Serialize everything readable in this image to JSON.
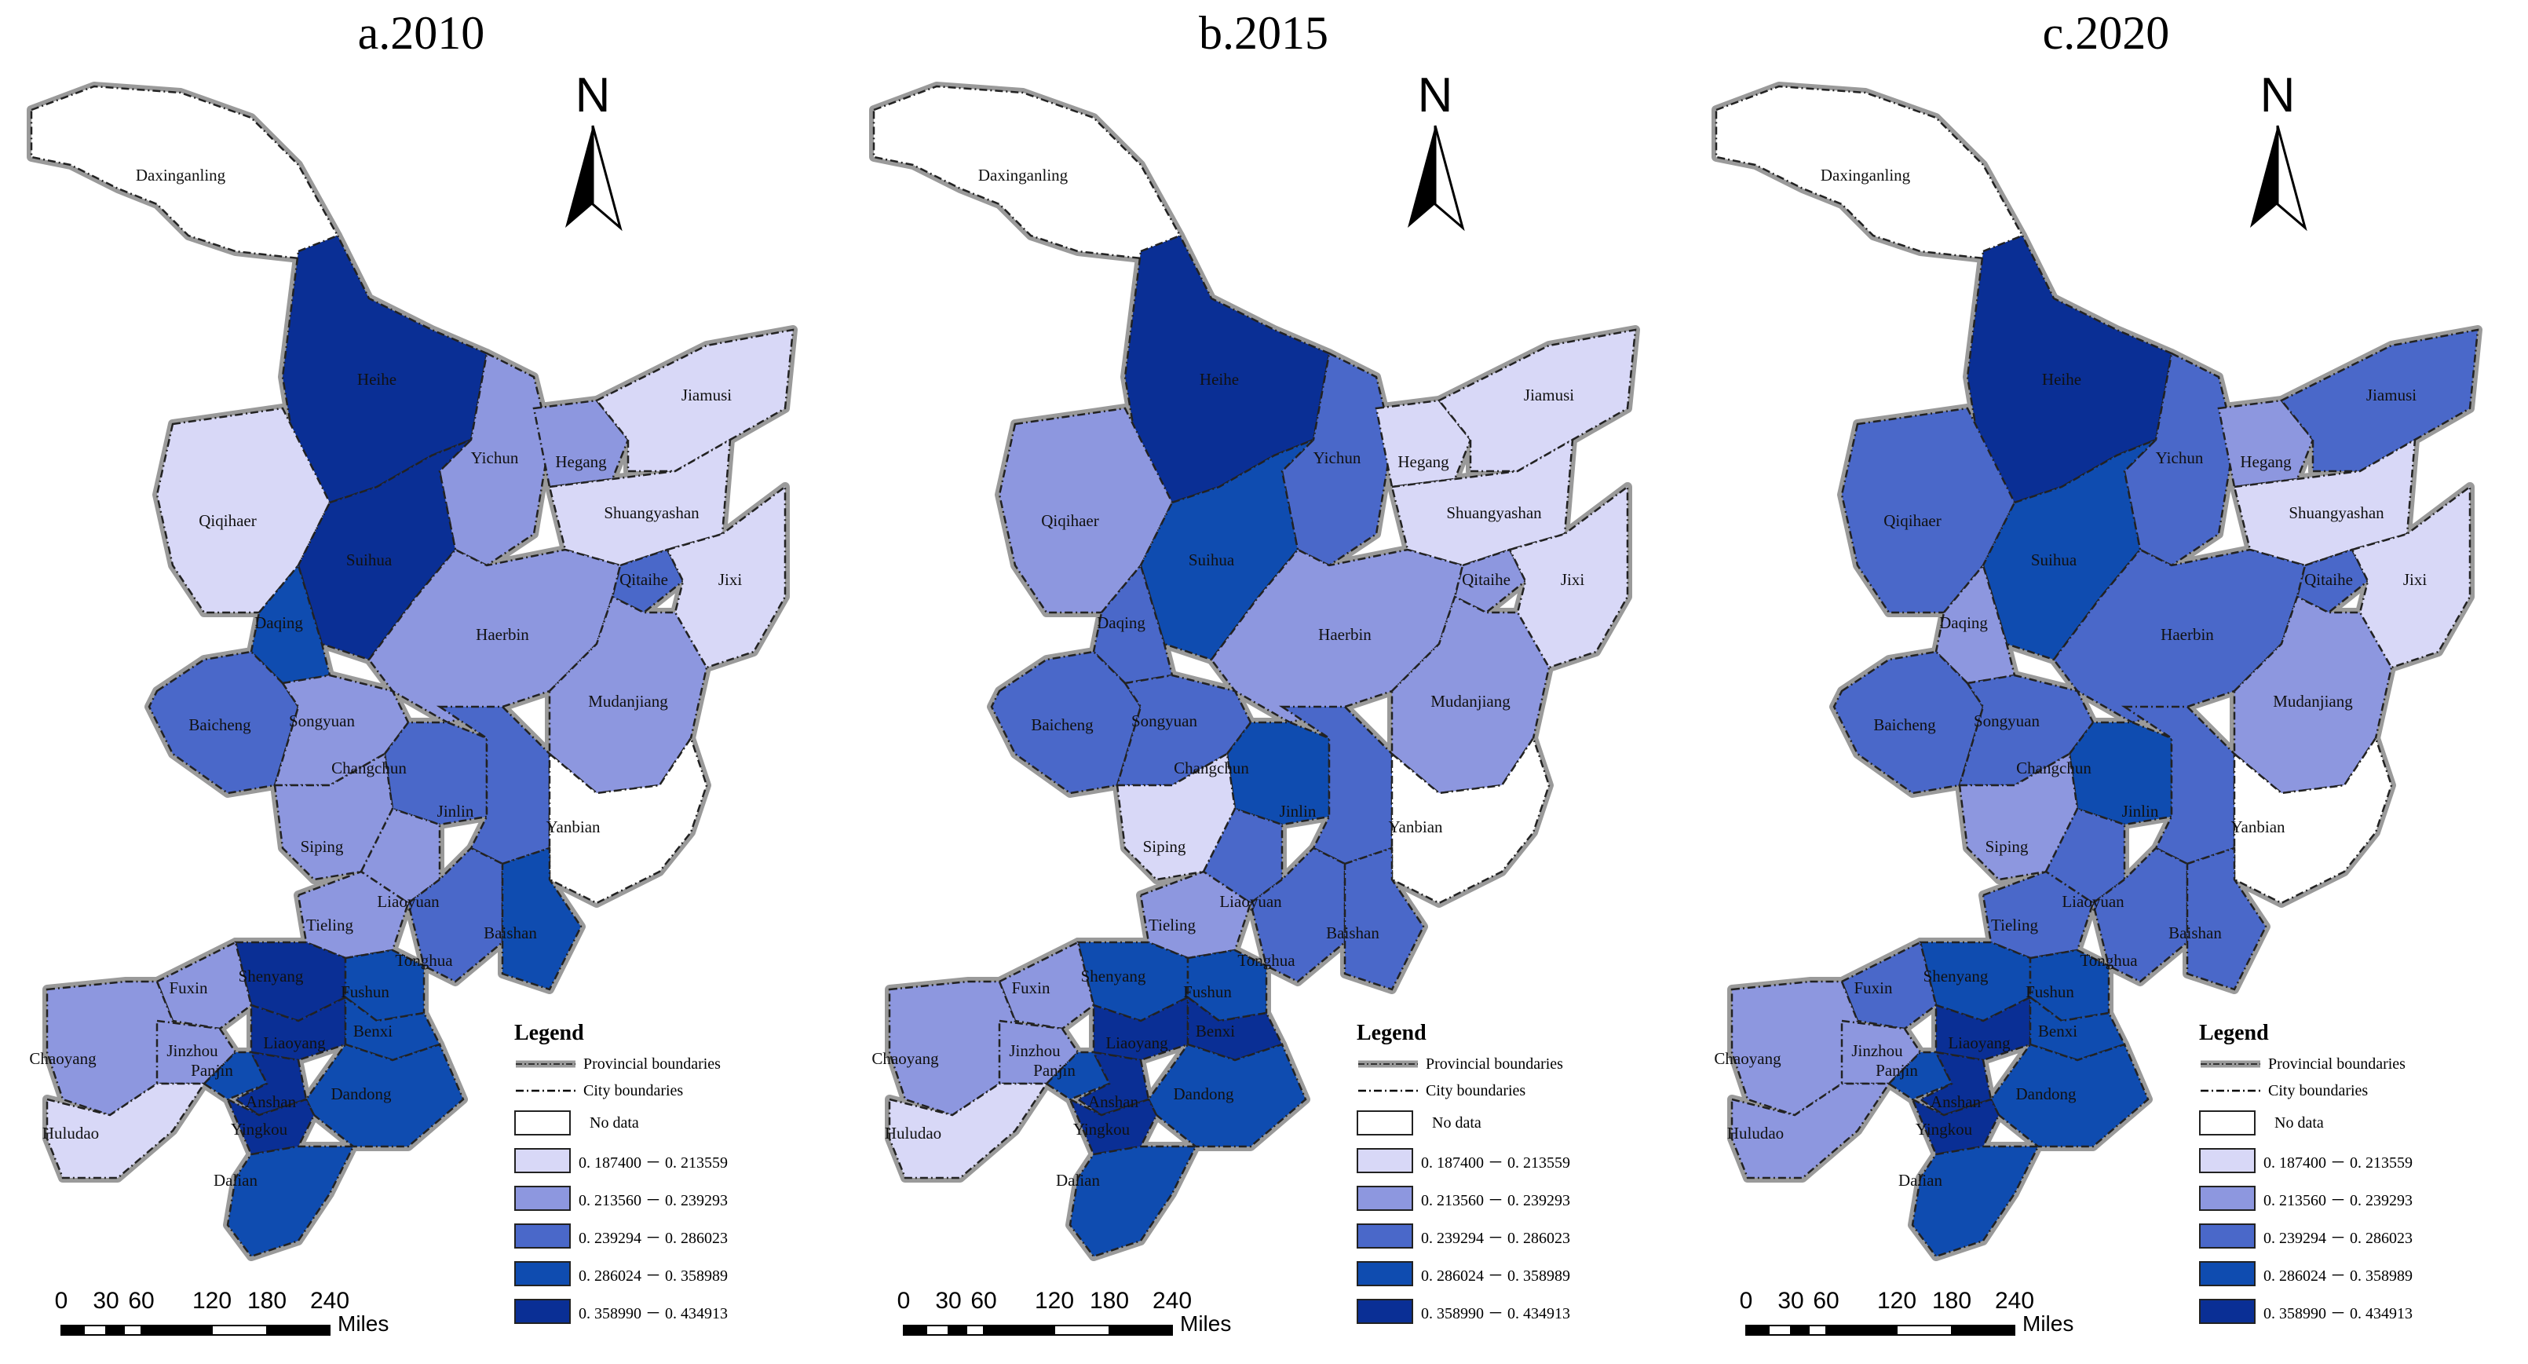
{
  "panels": [
    {
      "title": "a.2010",
      "classes": {
        "Daxinganling": 0,
        "Heihe": 5,
        "Yichun": 2,
        "Hegang": 2,
        "Jiamusi": 1,
        "Qiqihaer": 1,
        "Suihua": 5,
        "Shuangyashan": 1,
        "Daqing": 4,
        "Qitaihe": 3,
        "Jixi": 1,
        "Haerbin": 2,
        "Mudanjiang": 2,
        "Baicheng": 3,
        "Songyuan": 2,
        "Changchun": 3,
        "Jinlin": 3,
        "Yanbian": 0,
        "Siping": 2,
        "Liaoyuan": 2,
        "Tonghua": 3,
        "Baishan": 4,
        "Tieling": 2,
        "Shenyang": 5,
        "Fuxin": 2,
        "Fushun": 4,
        "Chaoyang": 2,
        "Jinzhou": 2,
        "Liaoyang": 5,
        "Benxi": 4,
        "Panjin": 4,
        "Anshan": 5,
        "Dandong": 4,
        "Huludao": 1,
        "Yingkou": 5,
        "Dalian": 4
      }
    },
    {
      "title": "b.2015",
      "classes": {
        "Daxinganling": 0,
        "Heihe": 5,
        "Yichun": 3,
        "Hegang": 1,
        "Jiamusi": 1,
        "Qiqihaer": 2,
        "Suihua": 4,
        "Shuangyashan": 1,
        "Daqing": 3,
        "Qitaihe": 2,
        "Jixi": 1,
        "Haerbin": 2,
        "Mudanjiang": 2,
        "Baicheng": 3,
        "Songyuan": 3,
        "Changchun": 4,
        "Jinlin": 3,
        "Yanbian": 0,
        "Siping": 1,
        "Liaoyuan": 3,
        "Tonghua": 3,
        "Baishan": 3,
        "Tieling": 2,
        "Shenyang": 4,
        "Fuxin": 2,
        "Fushun": 4,
        "Chaoyang": 2,
        "Jinzhou": 2,
        "Liaoyang": 5,
        "Benxi": 5,
        "Panjin": 4,
        "Anshan": 5,
        "Dandong": 4,
        "Huludao": 1,
        "Yingkou": 5,
        "Dalian": 4
      }
    },
    {
      "title": "c.2020",
      "classes": {
        "Daxinganling": 0,
        "Heihe": 5,
        "Yichun": 3,
        "Hegang": 2,
        "Jiamusi": 3,
        "Qiqihaer": 3,
        "Suihua": 4,
        "Shuangyashan": 1,
        "Daqing": 2,
        "Qitaihe": 3,
        "Jixi": 1,
        "Haerbin": 3,
        "Mudanjiang": 2,
        "Baicheng": 3,
        "Songyuan": 3,
        "Changchun": 4,
        "Jinlin": 3,
        "Yanbian": 0,
        "Siping": 2,
        "Liaoyuan": 3,
        "Tonghua": 3,
        "Baishan": 3,
        "Tieling": 3,
        "Shenyang": 4,
        "Fuxin": 3,
        "Fushun": 4,
        "Chaoyang": 2,
        "Jinzhou": 2,
        "Liaoyang": 5,
        "Benxi": 4,
        "Panjin": 4,
        "Anshan": 5,
        "Dandong": 4,
        "Huludao": 2,
        "Yingkou": 5,
        "Dalian": 4
      }
    }
  ],
  "north_label": "N",
  "legend": {
    "title": "Legend",
    "provincial": "Provincial boundaries",
    "city": "City boundaries",
    "no_data": "No data",
    "ranges": [
      "0. 187400 － 0. 213559",
      "0. 213560 － 0. 239293",
      "0. 239294 － 0. 286023",
      "0. 286024 － 0. 358989",
      "0. 358990 － 0. 434913"
    ]
  },
  "class_colors": [
    "#ffffff",
    "#d8d8f7",
    "#8d97df",
    "#4a68c9",
    "#0f4cb0",
    "#0a2f95"
  ],
  "scale": {
    "ticks": [
      "0",
      "30",
      "60",
      "120",
      "180",
      "240"
    ],
    "units": "Miles"
  }
}
